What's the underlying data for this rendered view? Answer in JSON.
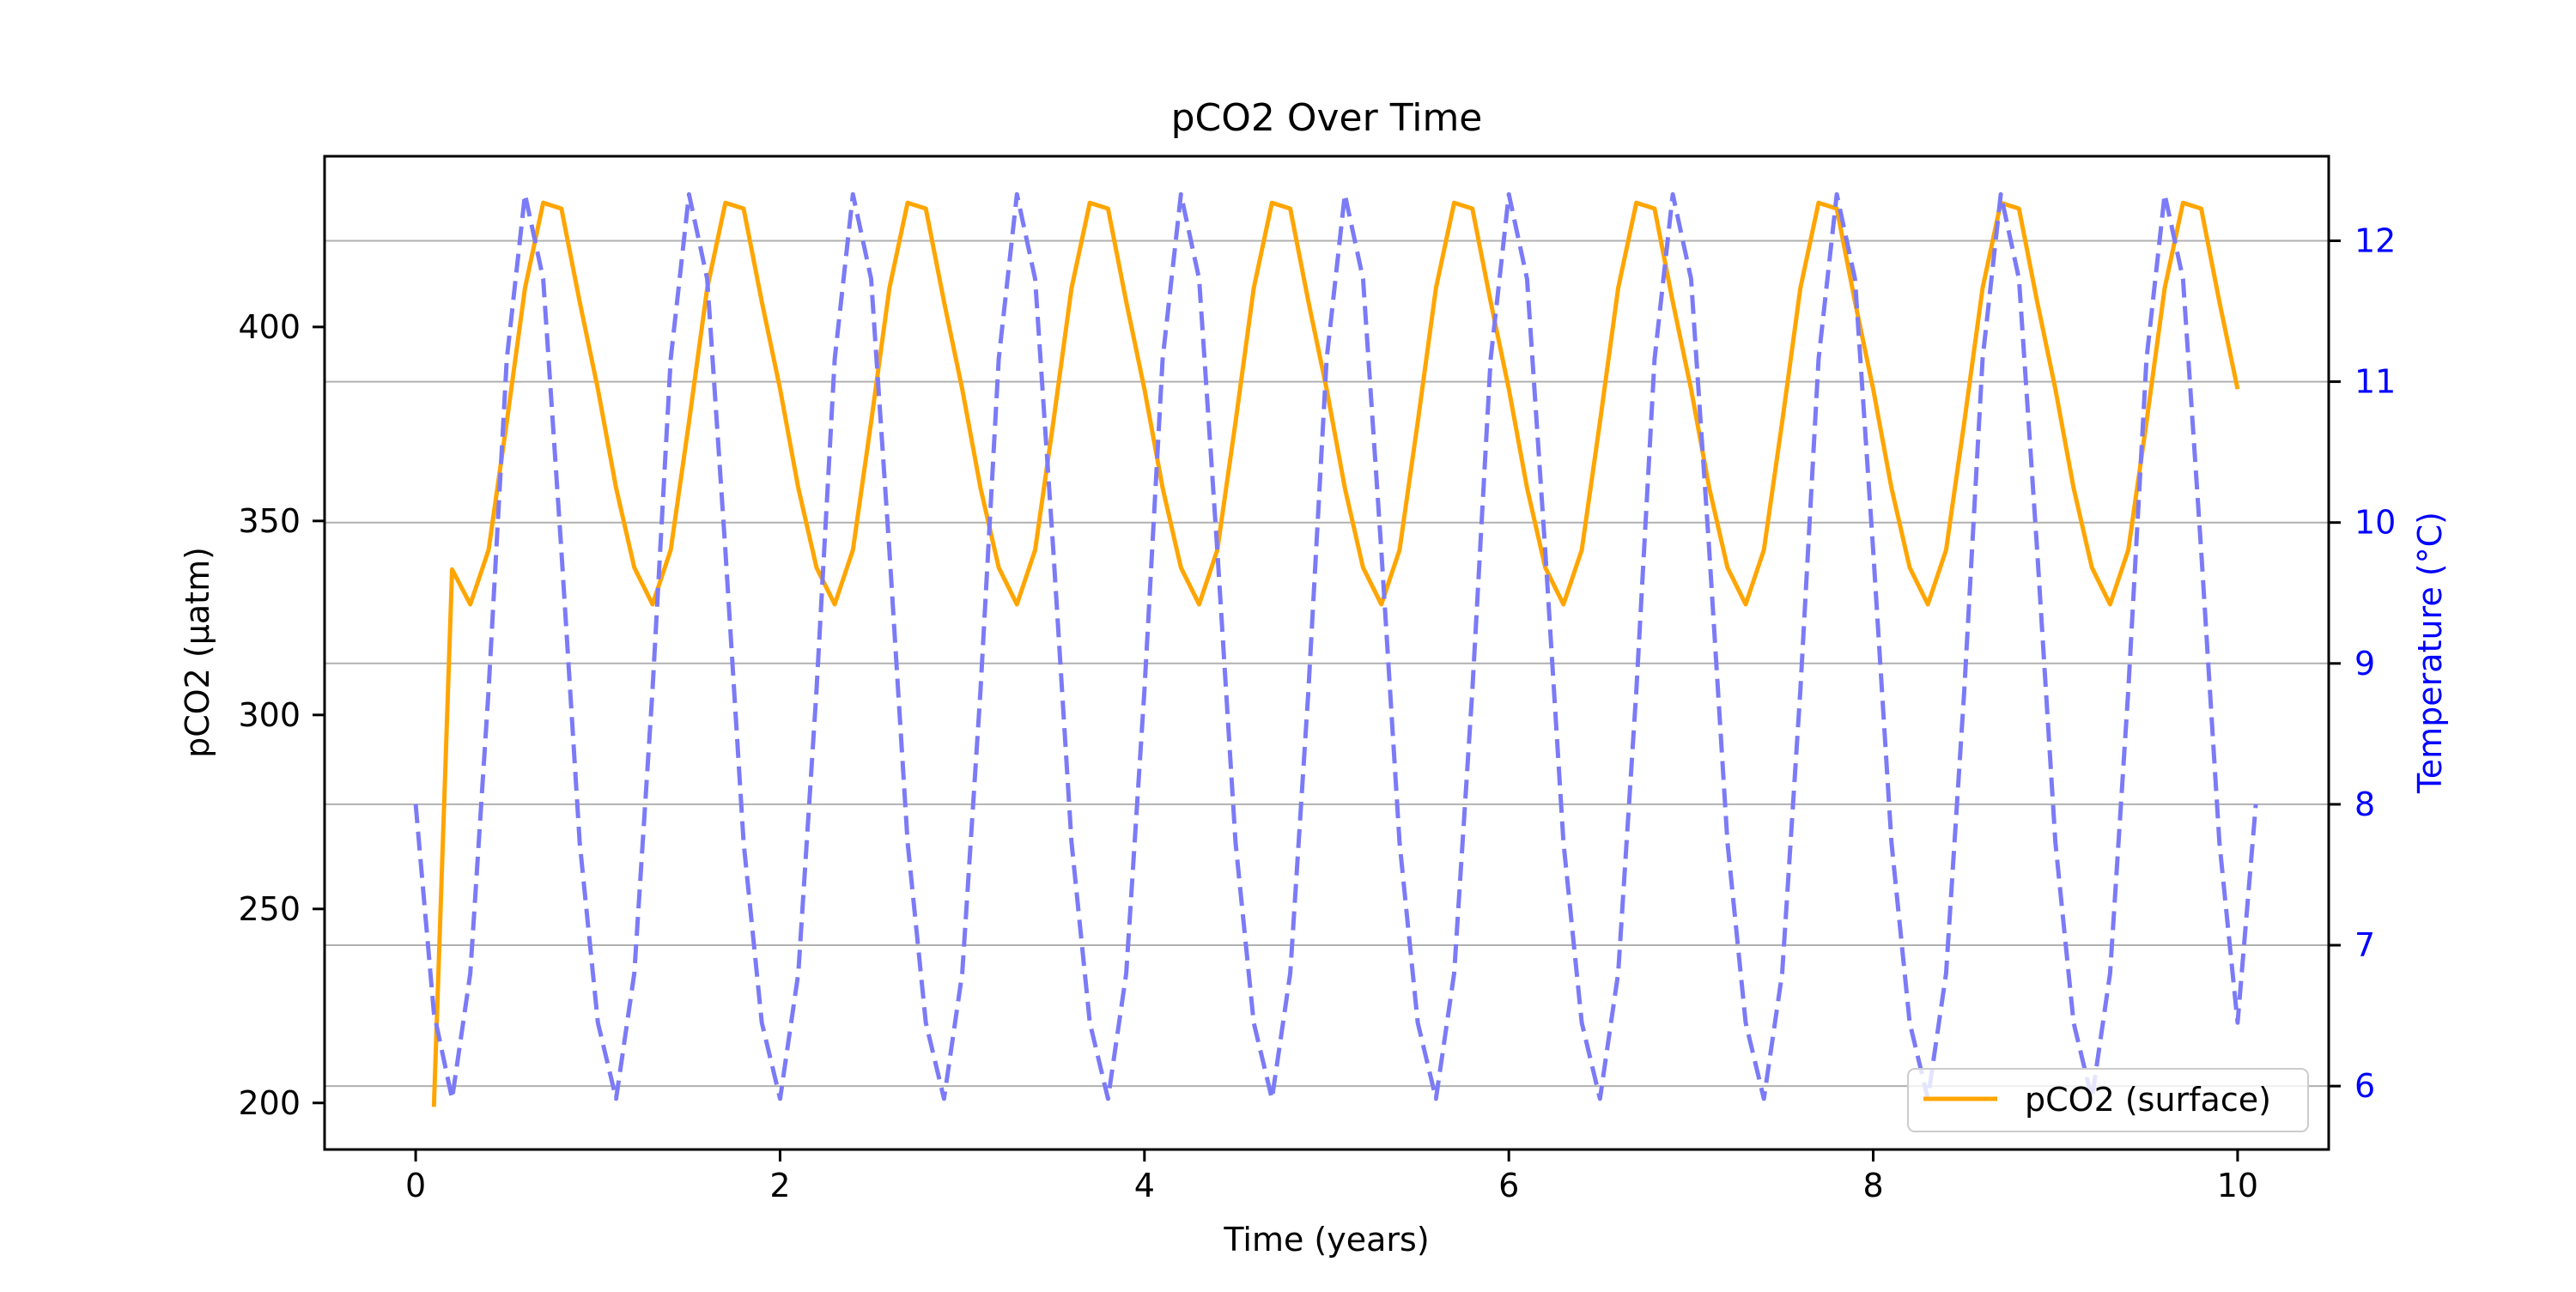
{
  "chart_data": {
    "type": "line",
    "title": "pCO2 Over Time",
    "xlabel": "Time (years)",
    "ylabel": "pCO2 (µatm)",
    "y2label": "Temperature (°C)",
    "xlim": [
      -0.5,
      10.5
    ],
    "ylim": [
      188,
      444
    ],
    "y2lim": [
      5.55,
      12.6
    ],
    "x_ticks": [
      0,
      2,
      4,
      6,
      8,
      10
    ],
    "y_ticks": [
      200,
      250,
      300,
      350,
      400
    ],
    "y2_ticks": [
      6,
      7,
      8,
      9,
      10,
      11,
      12
    ],
    "grid": "horizontal gridlines at right-axis ticks",
    "legend_position": "lower-right",
    "colors": {
      "pco2": "#FFA500",
      "temperature": "#7B7BF7",
      "right_axis": "#0000FF",
      "grid": "#B0B0B0"
    },
    "series": [
      {
        "name": "pCO2 (surface)",
        "axis": "left",
        "style": "solid",
        "x_start": 0.1,
        "x_step": 0.1,
        "values": [
          199,
          337.5,
          328.5,
          342.5,
          375.5,
          410,
          432,
          430.5,
          406.5,
          384,
          358.5,
          338,
          328.5,
          342.5,
          375.5,
          410,
          432,
          430.5,
          406.5,
          384,
          358.5,
          338,
          328.5,
          342.5,
          375.5,
          410,
          432,
          430.5,
          406.5,
          384,
          358.5,
          338,
          328.5,
          342.5,
          375.5,
          410,
          432,
          430.5,
          406.5,
          384,
          358.5,
          338,
          328.5,
          342.5,
          375.5,
          410,
          432,
          430.5,
          406.5,
          384,
          358.5,
          338,
          328.5,
          342.5,
          375.5,
          410,
          432,
          430.5,
          406.5,
          384,
          358.5,
          338,
          328.5,
          342.5,
          375.5,
          410,
          432,
          430.5,
          406.5,
          384,
          358.5,
          338,
          328.5,
          342.5,
          375.5,
          410,
          432,
          430.5,
          406.5,
          384,
          358.5,
          338,
          328.5,
          342.5,
          375.5,
          410,
          432,
          430.5,
          406.5,
          384,
          358.5,
          338,
          328.5,
          342.5,
          375.5,
          410,
          432,
          430.5,
          406.5,
          384
        ]
      },
      {
        "axis": "right",
        "style": "dashed",
        "x_start": 0,
        "x_step": 0.1,
        "values": [
          8.0,
          6.52,
          5.91,
          6.8,
          8.81,
          11.16,
          12.33,
          11.73,
          9.8,
          7.73,
          6.45,
          5.91,
          6.8,
          8.81,
          11.16,
          12.33,
          11.73,
          9.8,
          7.73,
          6.45,
          5.91,
          6.8,
          8.81,
          11.16,
          12.33,
          11.73,
          9.8,
          7.73,
          6.45,
          5.91,
          6.8,
          8.81,
          11.16,
          12.33,
          11.73,
          9.8,
          7.73,
          6.45,
          5.91,
          6.8,
          8.81,
          11.16,
          12.33,
          11.73,
          9.8,
          7.73,
          6.45,
          5.91,
          6.8,
          8.81,
          11.16,
          12.33,
          11.73,
          9.8,
          7.73,
          6.45,
          5.91,
          6.8,
          8.81,
          11.16,
          12.33,
          11.73,
          9.8,
          7.73,
          6.45,
          5.91,
          6.8,
          8.81,
          11.16,
          12.33,
          11.73,
          9.8,
          7.73,
          6.45,
          5.91,
          6.8,
          8.81,
          11.16,
          12.33,
          11.73,
          9.8,
          7.73,
          6.45,
          5.91,
          6.8,
          8.81,
          11.16,
          12.33,
          11.73,
          9.8,
          7.73,
          6.45,
          5.91,
          6.8,
          8.81,
          11.16,
          12.33,
          11.73,
          9.8,
          7.73,
          6.45,
          8.0
        ]
      }
    ]
  }
}
